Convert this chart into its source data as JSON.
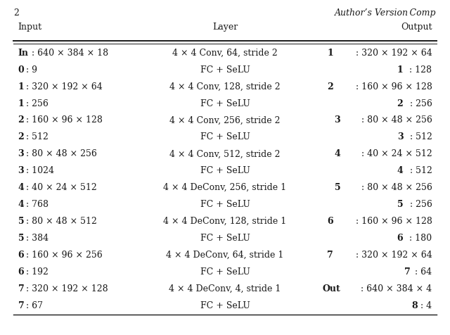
{
  "page_number": "2",
  "header_right": "Author’s Version Comp",
  "col_headers": [
    "Input",
    "Layer",
    "Output"
  ],
  "rows": [
    [
      [
        "In",
        ": 640 × 384 × 18"
      ],
      "4 × 4 Conv, 64, stride 2",
      [
        "1",
        ": 320 × 192 × 64"
      ]
    ],
    [
      [
        "0",
        ": 9"
      ],
      "FC + SeLU",
      [
        "1",
        ": 128"
      ]
    ],
    [
      [
        "1",
        ": 320 × 192 × 64"
      ],
      "4 × 4 Conv, 128, stride 2",
      [
        "2",
        ": 160 × 96 × 128"
      ]
    ],
    [
      [
        "1",
        ": 256"
      ],
      "FC + SeLU",
      [
        "2",
        ": 256"
      ]
    ],
    [
      [
        "2",
        ": 160 × 96 × 128"
      ],
      "4 × 4 Conv, 256, stride 2",
      [
        "3",
        ": 80 × 48 × 256"
      ]
    ],
    [
      [
        "2",
        ": 512"
      ],
      "FC + SeLU",
      [
        "3",
        ": 512"
      ]
    ],
    [
      [
        "3",
        ": 80 × 48 × 256"
      ],
      "4 × 4 Conv, 512, stride 2",
      [
        "4",
        ": 40 × 24 × 512"
      ]
    ],
    [
      [
        "3",
        ": 1024"
      ],
      "FC + SeLU",
      [
        "4",
        ": 512"
      ]
    ],
    [
      [
        "4",
        ": 40 × 24 × 512"
      ],
      "4 × 4 DeConv, 256, stride 1",
      [
        "5",
        ": 80 × 48 × 256"
      ]
    ],
    [
      [
        "4",
        ": 768"
      ],
      "FC + SeLU",
      [
        "5",
        ": 256"
      ]
    ],
    [
      [
        "5",
        ": 80 × 48 × 512"
      ],
      "4 × 4 DeConv, 128, stride 1",
      [
        "6",
        ": 160 × 96 × 128"
      ]
    ],
    [
      [
        "5",
        ": 384"
      ],
      "FC + SeLU",
      [
        "6",
        ": 180"
      ]
    ],
    [
      [
        "6",
        ": 160 × 96 × 256"
      ],
      "4 × 4 DeConv, 64, stride 1",
      [
        "7",
        ": 320 × 192 × 64"
      ]
    ],
    [
      [
        "6",
        ": 192"
      ],
      "FC + SeLU",
      [
        "7",
        ": 64"
      ]
    ],
    [
      [
        "7",
        ": 320 × 192 × 128"
      ],
      "4 × 4 DeConv, 4, stride 1",
      [
        "Out",
        ": 640 × 384 × 4"
      ]
    ],
    [
      [
        "7",
        ": 67"
      ],
      "FC + SeLU",
      [
        "8",
        ": 4"
      ]
    ]
  ],
  "bg_color": "#ffffff",
  "text_color": "#1a1a1a",
  "font_size": 9.0,
  "figsize": [
    6.4,
    4.76
  ],
  "dpi": 100
}
